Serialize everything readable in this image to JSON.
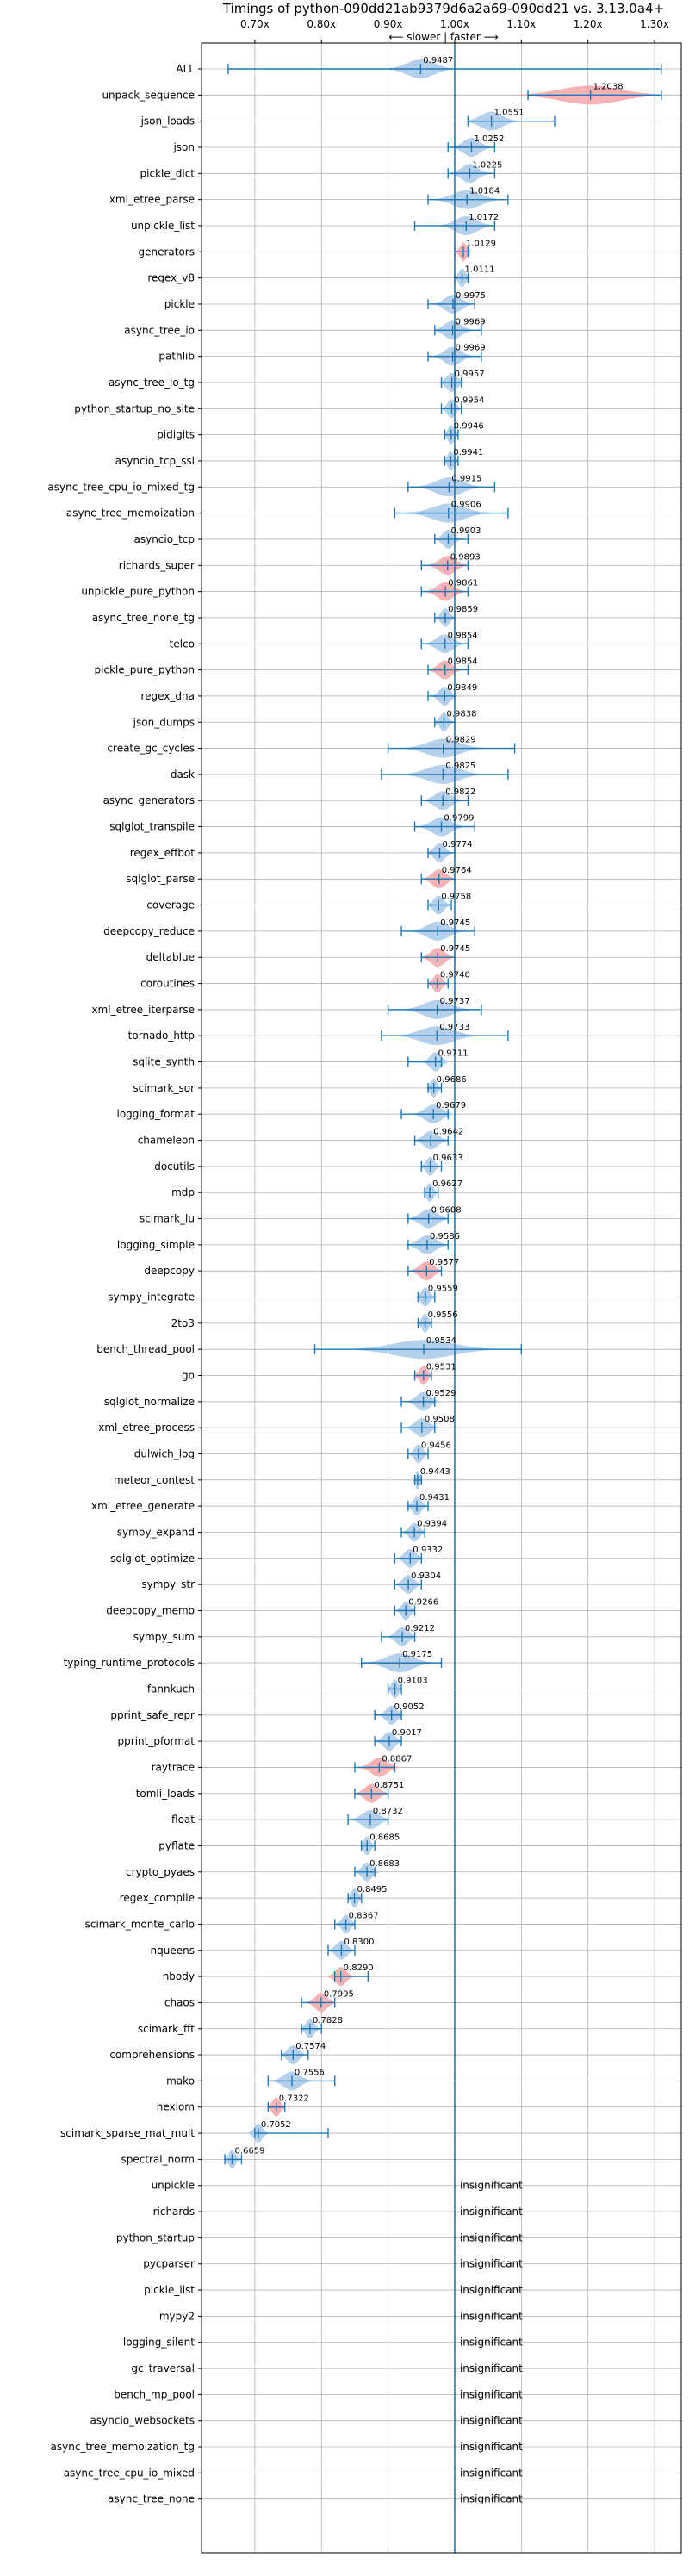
{
  "colors": {
    "faster": "#a8c8e8",
    "slower": "#f4a4a8",
    "line": "#1f77b4",
    "grid": "#b0b0b0"
  },
  "chart_data": {
    "type": "violin",
    "title": "Timings of python-090dd21ab9379d6a2a69-090dd21 vs. 3.13.0a4+",
    "direction_label": "⟵ slower | faster ⟶",
    "xlim": [
      0.62,
      1.34
    ],
    "xticks": [
      0.7,
      0.8,
      0.9,
      1.0,
      1.1,
      1.2,
      1.3
    ],
    "xtick_labels": [
      "0.70x",
      "0.80x",
      "0.90x",
      "1.00x",
      "1.10x",
      "1.20x",
      "1.30x"
    ],
    "reference_line": 1.0,
    "insignificant_label": "insignificant",
    "benchmarks": [
      {
        "name": "ALL",
        "value": 0.9487,
        "lo": 0.66,
        "hi": 1.31,
        "spread": 0.05,
        "color": "faster"
      },
      {
        "name": "unpack_sequence",
        "value": 1.2038,
        "lo": 1.11,
        "hi": 1.31,
        "spread": 0.11,
        "color": "slower"
      },
      {
        "name": "json_loads",
        "value": 1.0551,
        "lo": 1.02,
        "hi": 1.15,
        "spread": 0.04,
        "color": "faster"
      },
      {
        "name": "json",
        "value": 1.0252,
        "lo": 0.99,
        "hi": 1.06,
        "spread": 0.03,
        "color": "faster"
      },
      {
        "name": "pickle_dict",
        "value": 1.0225,
        "lo": 0.99,
        "hi": 1.06,
        "spread": 0.03,
        "color": "faster"
      },
      {
        "name": "xml_etree_parse",
        "value": 1.0184,
        "lo": 0.96,
        "hi": 1.08,
        "spread": 0.05,
        "color": "faster"
      },
      {
        "name": "unpickle_list",
        "value": 1.0172,
        "lo": 0.94,
        "hi": 1.06,
        "spread": 0.04,
        "color": "faster"
      },
      {
        "name": "generators",
        "value": 1.0129,
        "lo": 1.0,
        "hi": 1.02,
        "spread": 0.012,
        "color": "slower"
      },
      {
        "name": "regex_v8",
        "value": 1.0111,
        "lo": 1.0,
        "hi": 1.02,
        "spread": 0.012,
        "color": "faster"
      },
      {
        "name": "pickle",
        "value": 0.9975,
        "lo": 0.96,
        "hi": 1.03,
        "spread": 0.03,
        "color": "faster"
      },
      {
        "name": "async_tree_io",
        "value": 0.9969,
        "lo": 0.97,
        "hi": 1.04,
        "spread": 0.03,
        "color": "faster"
      },
      {
        "name": "pathlib",
        "value": 0.9969,
        "lo": 0.96,
        "hi": 1.04,
        "spread": 0.03,
        "color": "faster"
      },
      {
        "name": "async_tree_io_tg",
        "value": 0.9957,
        "lo": 0.98,
        "hi": 1.01,
        "spread": 0.02,
        "color": "faster"
      },
      {
        "name": "python_startup_no_site",
        "value": 0.9954,
        "lo": 0.98,
        "hi": 1.01,
        "spread": 0.015,
        "color": "faster"
      },
      {
        "name": "pidigits",
        "value": 0.9946,
        "lo": 0.985,
        "hi": 1.005,
        "spread": 0.012,
        "color": "faster"
      },
      {
        "name": "asyncio_tcp_ssl",
        "value": 0.9941,
        "lo": 0.985,
        "hi": 1.005,
        "spread": 0.012,
        "color": "faster"
      },
      {
        "name": "async_tree_cpu_io_mixed_tg",
        "value": 0.9915,
        "lo": 0.93,
        "hi": 1.06,
        "spread": 0.05,
        "color": "faster"
      },
      {
        "name": "async_tree_memoization",
        "value": 0.9906,
        "lo": 0.91,
        "hi": 1.08,
        "spread": 0.06,
        "color": "faster"
      },
      {
        "name": "asyncio_tcp",
        "value": 0.9903,
        "lo": 0.97,
        "hi": 1.02,
        "spread": 0.02,
        "color": "faster"
      },
      {
        "name": "richards_super",
        "value": 0.9893,
        "lo": 0.95,
        "hi": 1.02,
        "spread": 0.03,
        "color": "slower"
      },
      {
        "name": "unpickle_pure_python",
        "value": 0.9861,
        "lo": 0.95,
        "hi": 1.02,
        "spread": 0.03,
        "color": "slower"
      },
      {
        "name": "async_tree_none_tg",
        "value": 0.9859,
        "lo": 0.97,
        "hi": 1.0,
        "spread": 0.015,
        "color": "faster"
      },
      {
        "name": "telco",
        "value": 0.9854,
        "lo": 0.95,
        "hi": 1.02,
        "spread": 0.03,
        "color": "faster"
      },
      {
        "name": "pickle_pure_python",
        "value": 0.9854,
        "lo": 0.96,
        "hi": 1.02,
        "spread": 0.025,
        "color": "slower"
      },
      {
        "name": "regex_dna",
        "value": 0.9849,
        "lo": 0.96,
        "hi": 1.0,
        "spread": 0.02,
        "color": "faster"
      },
      {
        "name": "json_dumps",
        "value": 0.9838,
        "lo": 0.97,
        "hi": 1.0,
        "spread": 0.015,
        "color": "faster"
      },
      {
        "name": "create_gc_cycles",
        "value": 0.9829,
        "lo": 0.9,
        "hi": 1.09,
        "spread": 0.06,
        "color": "faster"
      },
      {
        "name": "dask",
        "value": 0.9825,
        "lo": 0.89,
        "hi": 1.08,
        "spread": 0.06,
        "color": "faster"
      },
      {
        "name": "async_generators",
        "value": 0.9822,
        "lo": 0.95,
        "hi": 1.02,
        "spread": 0.03,
        "color": "faster"
      },
      {
        "name": "sqlglot_transpile",
        "value": 0.9799,
        "lo": 0.94,
        "hi": 1.03,
        "spread": 0.035,
        "color": "faster"
      },
      {
        "name": "regex_effbot",
        "value": 0.9774,
        "lo": 0.96,
        "hi": 1.0,
        "spread": 0.02,
        "color": "faster"
      },
      {
        "name": "sqlglot_parse",
        "value": 0.9764,
        "lo": 0.95,
        "hi": 1.0,
        "spread": 0.025,
        "color": "slower"
      },
      {
        "name": "coverage",
        "value": 0.9758,
        "lo": 0.96,
        "hi": 0.995,
        "spread": 0.018,
        "color": "faster"
      },
      {
        "name": "deepcopy_reduce",
        "value": 0.9745,
        "lo": 0.92,
        "hi": 1.03,
        "spread": 0.04,
        "color": "faster"
      },
      {
        "name": "deltablue",
        "value": 0.9745,
        "lo": 0.95,
        "hi": 1.0,
        "spread": 0.025,
        "color": "slower"
      },
      {
        "name": "coroutines",
        "value": 0.974,
        "lo": 0.96,
        "hi": 0.99,
        "spread": 0.015,
        "color": "slower"
      },
      {
        "name": "xml_etree_iterparse",
        "value": 0.9737,
        "lo": 0.9,
        "hi": 1.04,
        "spread": 0.05,
        "color": "faster"
      },
      {
        "name": "tornado_http",
        "value": 0.9733,
        "lo": 0.89,
        "hi": 1.08,
        "spread": 0.06,
        "color": "faster"
      },
      {
        "name": "sqlite_synth",
        "value": 0.9711,
        "lo": 0.93,
        "hi": 0.98,
        "spread": 0.02,
        "color": "faster"
      },
      {
        "name": "scimark_sor",
        "value": 0.9686,
        "lo": 0.96,
        "hi": 0.98,
        "spread": 0.012,
        "color": "faster"
      },
      {
        "name": "logging_format",
        "value": 0.9679,
        "lo": 0.92,
        "hi": 0.99,
        "spread": 0.03,
        "color": "faster"
      },
      {
        "name": "chameleon",
        "value": 0.9642,
        "lo": 0.94,
        "hi": 0.99,
        "spread": 0.025,
        "color": "faster"
      },
      {
        "name": "docutils",
        "value": 0.9633,
        "lo": 0.95,
        "hi": 0.98,
        "spread": 0.015,
        "color": "faster"
      },
      {
        "name": "mdp",
        "value": 0.9627,
        "lo": 0.955,
        "hi": 0.975,
        "spread": 0.012,
        "color": "faster"
      },
      {
        "name": "scimark_lu",
        "value": 0.9608,
        "lo": 0.93,
        "hi": 0.99,
        "spread": 0.03,
        "color": "faster"
      },
      {
        "name": "logging_simple",
        "value": 0.9586,
        "lo": 0.93,
        "hi": 0.99,
        "spread": 0.03,
        "color": "faster"
      },
      {
        "name": "deepcopy",
        "value": 0.9577,
        "lo": 0.93,
        "hi": 0.98,
        "spread": 0.025,
        "color": "slower"
      },
      {
        "name": "sympy_integrate",
        "value": 0.9559,
        "lo": 0.945,
        "hi": 0.97,
        "spread": 0.015,
        "color": "faster"
      },
      {
        "name": "2to3",
        "value": 0.9556,
        "lo": 0.945,
        "hi": 0.965,
        "spread": 0.012,
        "color": "faster"
      },
      {
        "name": "bench_thread_pool",
        "value": 0.9534,
        "lo": 0.79,
        "hi": 1.1,
        "spread": 0.11,
        "color": "faster"
      },
      {
        "name": "go",
        "value": 0.9531,
        "lo": 0.94,
        "hi": 0.965,
        "spread": 0.015,
        "color": "slower"
      },
      {
        "name": "sqlglot_normalize",
        "value": 0.9529,
        "lo": 0.92,
        "hi": 0.97,
        "spread": 0.025,
        "color": "faster"
      },
      {
        "name": "xml_etree_process",
        "value": 0.9508,
        "lo": 0.92,
        "hi": 0.97,
        "spread": 0.025,
        "color": "faster"
      },
      {
        "name": "dulwich_log",
        "value": 0.9456,
        "lo": 0.93,
        "hi": 0.96,
        "spread": 0.015,
        "color": "faster"
      },
      {
        "name": "meteor_contest",
        "value": 0.9443,
        "lo": 0.94,
        "hi": 0.95,
        "spread": 0.008,
        "color": "faster"
      },
      {
        "name": "xml_etree_generate",
        "value": 0.9431,
        "lo": 0.93,
        "hi": 0.96,
        "spread": 0.015,
        "color": "faster"
      },
      {
        "name": "sympy_expand",
        "value": 0.9394,
        "lo": 0.92,
        "hi": 0.955,
        "spread": 0.018,
        "color": "faster"
      },
      {
        "name": "sqlglot_optimize",
        "value": 0.9332,
        "lo": 0.91,
        "hi": 0.95,
        "spread": 0.02,
        "color": "faster"
      },
      {
        "name": "sympy_str",
        "value": 0.9304,
        "lo": 0.91,
        "hi": 0.95,
        "spread": 0.02,
        "color": "faster"
      },
      {
        "name": "deepcopy_memo",
        "value": 0.9266,
        "lo": 0.91,
        "hi": 0.94,
        "spread": 0.015,
        "color": "faster"
      },
      {
        "name": "sympy_sum",
        "value": 0.9212,
        "lo": 0.89,
        "hi": 0.94,
        "spread": 0.022,
        "color": "faster"
      },
      {
        "name": "typing_runtime_protocols",
        "value": 0.9175,
        "lo": 0.86,
        "hi": 0.98,
        "spread": 0.05,
        "color": "faster"
      },
      {
        "name": "fannkuch",
        "value": 0.9103,
        "lo": 0.9,
        "hi": 0.92,
        "spread": 0.012,
        "color": "faster"
      },
      {
        "name": "pprint_safe_repr",
        "value": 0.9052,
        "lo": 0.88,
        "hi": 0.92,
        "spread": 0.02,
        "color": "faster"
      },
      {
        "name": "pprint_pformat",
        "value": 0.9017,
        "lo": 0.88,
        "hi": 0.92,
        "spread": 0.02,
        "color": "faster"
      },
      {
        "name": "raytrace",
        "value": 0.8867,
        "lo": 0.85,
        "hi": 0.91,
        "spread": 0.03,
        "color": "slower"
      },
      {
        "name": "tomli_loads",
        "value": 0.8751,
        "lo": 0.85,
        "hi": 0.9,
        "spread": 0.025,
        "color": "slower"
      },
      {
        "name": "float",
        "value": 0.8732,
        "lo": 0.84,
        "hi": 0.9,
        "spread": 0.03,
        "color": "faster"
      },
      {
        "name": "pyflate",
        "value": 0.8685,
        "lo": 0.86,
        "hi": 0.88,
        "spread": 0.012,
        "color": "faster"
      },
      {
        "name": "crypto_pyaes",
        "value": 0.8683,
        "lo": 0.85,
        "hi": 0.88,
        "spread": 0.018,
        "color": "faster"
      },
      {
        "name": "regex_compile",
        "value": 0.8495,
        "lo": 0.84,
        "hi": 0.86,
        "spread": 0.012,
        "color": "faster"
      },
      {
        "name": "scimark_monte_carlo",
        "value": 0.8367,
        "lo": 0.82,
        "hi": 0.85,
        "spread": 0.015,
        "color": "faster"
      },
      {
        "name": "nqueens",
        "value": 0.83,
        "lo": 0.81,
        "hi": 0.85,
        "spread": 0.02,
        "color": "faster"
      },
      {
        "name": "nbody",
        "value": 0.829,
        "lo": 0.82,
        "hi": 0.87,
        "spread": 0.02,
        "color": "slower"
      },
      {
        "name": "chaos",
        "value": 0.7995,
        "lo": 0.77,
        "hi": 0.82,
        "spread": 0.022,
        "color": "slower"
      },
      {
        "name": "scimark_fft",
        "value": 0.7828,
        "lo": 0.77,
        "hi": 0.8,
        "spread": 0.015,
        "color": "faster"
      },
      {
        "name": "comprehensions",
        "value": 0.7574,
        "lo": 0.74,
        "hi": 0.78,
        "spread": 0.02,
        "color": "faster"
      },
      {
        "name": "mako",
        "value": 0.7556,
        "lo": 0.72,
        "hi": 0.82,
        "spread": 0.03,
        "color": "faster"
      },
      {
        "name": "hexiom",
        "value": 0.7322,
        "lo": 0.72,
        "hi": 0.745,
        "spread": 0.015,
        "color": "slower"
      },
      {
        "name": "scimark_sparse_mat_mult",
        "value": 0.7052,
        "lo": 0.7,
        "hi": 0.81,
        "spread": 0.015,
        "color": "faster"
      },
      {
        "name": "spectral_norm",
        "value": 0.6659,
        "lo": 0.655,
        "hi": 0.68,
        "spread": 0.012,
        "color": "faster"
      },
      {
        "name": "unpickle",
        "value": null
      },
      {
        "name": "richards",
        "value": null
      },
      {
        "name": "python_startup",
        "value": null
      },
      {
        "name": "pycparser",
        "value": null
      },
      {
        "name": "pickle_list",
        "value": null
      },
      {
        "name": "mypy2",
        "value": null
      },
      {
        "name": "logging_silent",
        "value": null
      },
      {
        "name": "gc_traversal",
        "value": null
      },
      {
        "name": "bench_mp_pool",
        "value": null
      },
      {
        "name": "asyncio_websockets",
        "value": null
      },
      {
        "name": "async_tree_memoization_tg",
        "value": null
      },
      {
        "name": "async_tree_cpu_io_mixed",
        "value": null
      },
      {
        "name": "async_tree_none",
        "value": null
      }
    ]
  }
}
